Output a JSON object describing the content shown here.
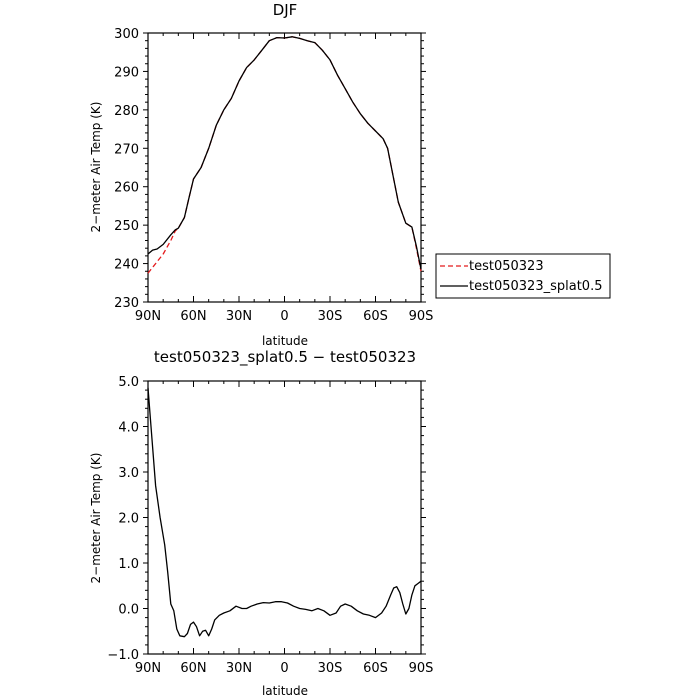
{
  "chart_data": [
    {
      "type": "line",
      "title": "DJF",
      "xlabel": "latitude",
      "ylabel": "2−meter Air Temp (K)",
      "xlim": [
        90,
        -90
      ],
      "ylim": [
        230,
        300
      ],
      "x_tick_values": [
        90,
        60,
        30,
        0,
        -30,
        -60,
        -90
      ],
      "x_tick_labels": [
        "90N",
        "60N",
        "30N",
        "0",
        "30S",
        "60S",
        "90S"
      ],
      "y_tick_values": [
        230,
        240,
        250,
        260,
        270,
        280,
        290,
        300
      ],
      "y_tick_labels": [
        "230",
        "240",
        "250",
        "260",
        "270",
        "280",
        "290",
        "300"
      ],
      "legend": {
        "placement": "right"
      },
      "series": [
        {
          "name": "test050323",
          "color": "#e41a1c",
          "dash": "dashed",
          "points": [
            [
              90,
              237.5
            ],
            [
              85,
              240
            ],
            [
              80,
              242.5
            ],
            [
              75,
              246
            ],
            [
              72,
              248.5
            ],
            [
              70,
              249.2
            ],
            [
              66,
              252
            ],
            [
              63,
              257
            ],
            [
              60,
              262
            ],
            [
              55,
              265
            ],
            [
              50,
              270
            ],
            [
              45,
              276
            ],
            [
              40,
              280
            ],
            [
              35,
              283
            ],
            [
              30,
              287.5
            ],
            [
              25,
              291
            ],
            [
              20,
              293
            ],
            [
              15,
              295.5
            ],
            [
              10,
              298
            ],
            [
              5,
              298.8
            ],
            [
              0,
              298.7
            ],
            [
              -5,
              299
            ],
            [
              -10,
              298.6
            ],
            [
              -15,
              298
            ],
            [
              -20,
              297.5
            ],
            [
              -25,
              295.5
            ],
            [
              -30,
              293
            ],
            [
              -35,
              289
            ],
            [
              -40,
              285.5
            ],
            [
              -45,
              282
            ],
            [
              -50,
              279
            ],
            [
              -55,
              276.5
            ],
            [
              -60,
              274.5
            ],
            [
              -65,
              272.5
            ],
            [
              -68,
              270
            ],
            [
              -72,
              262
            ],
            [
              -75,
              256
            ],
            [
              -80,
              250.5
            ],
            [
              -84,
              249.5
            ],
            [
              -87,
              244
            ],
            [
              -90,
              238
            ]
          ]
        },
        {
          "name": "test050323_splat0.5",
          "color": "#000000",
          "dash": "solid",
          "points": [
            [
              90,
              242.5
            ],
            [
              87,
              243.5
            ],
            [
              84,
              243.8
            ],
            [
              80,
              245
            ],
            [
              75,
              247.5
            ],
            [
              72,
              248.8
            ],
            [
              70,
              249.2
            ],
            [
              66,
              252
            ],
            [
              63,
              257
            ],
            [
              60,
              262
            ],
            [
              55,
              265
            ],
            [
              50,
              270
            ],
            [
              45,
              276
            ],
            [
              40,
              280
            ],
            [
              35,
              283
            ],
            [
              30,
              287.5
            ],
            [
              25,
              291
            ],
            [
              20,
              293
            ],
            [
              15,
              295.5
            ],
            [
              10,
              298
            ],
            [
              5,
              298.8
            ],
            [
              0,
              298.7
            ],
            [
              -5,
              299
            ],
            [
              -10,
              298.6
            ],
            [
              -15,
              298
            ],
            [
              -20,
              297.5
            ],
            [
              -25,
              295.5
            ],
            [
              -30,
              293
            ],
            [
              -35,
              289
            ],
            [
              -40,
              285.5
            ],
            [
              -45,
              282
            ],
            [
              -50,
              279
            ],
            [
              -55,
              276.5
            ],
            [
              -60,
              274.5
            ],
            [
              -65,
              272.5
            ],
            [
              -68,
              270
            ],
            [
              -72,
              262
            ],
            [
              -75,
              256
            ],
            [
              -80,
              250.5
            ],
            [
              -84,
              249.5
            ],
            [
              -87,
              244.5
            ],
            [
              -90,
              238.5
            ]
          ]
        }
      ]
    },
    {
      "type": "line",
      "title": "test050323_splat0.5 − test050323",
      "xlabel": "latitude",
      "ylabel": "2−meter Air Temp (K)",
      "xlim": [
        90,
        -90
      ],
      "ylim": [
        -1.0,
        5.0
      ],
      "x_tick_values": [
        90,
        60,
        30,
        0,
        -30,
        -60,
        -90
      ],
      "x_tick_labels": [
        "90N",
        "60N",
        "30N",
        "0",
        "30S",
        "60S",
        "90S"
      ],
      "y_tick_values": [
        -1,
        0,
        1,
        2,
        3,
        4,
        5
      ],
      "y_tick_labels": [
        "−1.0",
        "0.0",
        "1.0",
        "2.0",
        "3.0",
        "4.0",
        "5.0"
      ],
      "series": [
        {
          "color": "#000000",
          "dash": "solid",
          "points": [
            [
              90,
              4.85
            ],
            [
              88,
              4.0
            ],
            [
              85,
              2.7
            ],
            [
              82,
              2.0
            ],
            [
              79,
              1.4
            ],
            [
              77,
              0.8
            ],
            [
              75,
              0.1
            ],
            [
              73,
              -0.05
            ],
            [
              71,
              -0.45
            ],
            [
              69,
              -0.6
            ],
            [
              66,
              -0.62
            ],
            [
              64,
              -0.55
            ],
            [
              62,
              -0.35
            ],
            [
              60,
              -0.3
            ],
            [
              58,
              -0.4
            ],
            [
              56,
              -0.6
            ],
            [
              54,
              -0.5
            ],
            [
              52,
              -0.48
            ],
            [
              50,
              -0.6
            ],
            [
              48,
              -0.45
            ],
            [
              46,
              -0.25
            ],
            [
              43,
              -0.15
            ],
            [
              40,
              -0.1
            ],
            [
              36,
              -0.05
            ],
            [
              32,
              0.05
            ],
            [
              28,
              0.0
            ],
            [
              25,
              0.0
            ],
            [
              22,
              0.05
            ],
            [
              18,
              0.1
            ],
            [
              14,
              0.13
            ],
            [
              10,
              0.12
            ],
            [
              6,
              0.15
            ],
            [
              2,
              0.15
            ],
            [
              -2,
              0.12
            ],
            [
              -6,
              0.05
            ],
            [
              -10,
              0.0
            ],
            [
              -14,
              -0.02
            ],
            [
              -18,
              -0.05
            ],
            [
              -22,
              0.0
            ],
            [
              -26,
              -0.05
            ],
            [
              -30,
              -0.15
            ],
            [
              -34,
              -0.1
            ],
            [
              -37,
              0.05
            ],
            [
              -40,
              0.1
            ],
            [
              -44,
              0.05
            ],
            [
              -48,
              -0.05
            ],
            [
              -52,
              -0.12
            ],
            [
              -56,
              -0.15
            ],
            [
              -60,
              -0.2
            ],
            [
              -64,
              -0.1
            ],
            [
              -67,
              0.05
            ],
            [
              -70,
              0.3
            ],
            [
              -72,
              0.45
            ],
            [
              -74,
              0.48
            ],
            [
              -76,
              0.35
            ],
            [
              -78,
              0.1
            ],
            [
              -80,
              -0.12
            ],
            [
              -82,
              0.0
            ],
            [
              -84,
              0.3
            ],
            [
              -86,
              0.5
            ],
            [
              -88,
              0.55
            ],
            [
              -90,
              0.6
            ]
          ]
        }
      ]
    }
  ]
}
